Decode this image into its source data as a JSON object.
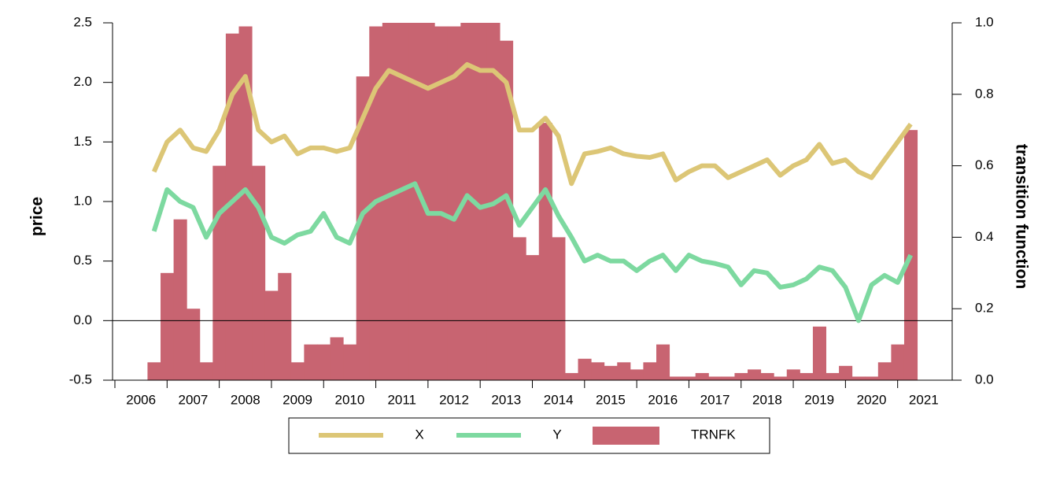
{
  "chart_data": {
    "type": "line",
    "y_label": "price",
    "y2_label": "transition function",
    "xlim": [
      2006,
      2022
    ],
    "xticks": [
      2006,
      2007,
      2008,
      2009,
      2010,
      2011,
      2012,
      2013,
      2014,
      2015,
      2016,
      2017,
      2018,
      2019,
      2020,
      2021
    ],
    "ylim": [
      -0.5,
      2.5
    ],
    "yticks": [
      -0.5,
      {
        "value": 0,
        "label": "0.0"
      },
      0.5,
      {
        "value": 1,
        "label": "1.0"
      },
      1.5,
      {
        "value": 2,
        "label": "2.0"
      },
      2.5
    ],
    "y2lim": [
      0,
      1
    ],
    "y2ticks": [
      {
        "value": 0,
        "label": "0.0"
      },
      0.2,
      0.4,
      0.6,
      0.8,
      {
        "value": 1,
        "label": "1.0"
      }
    ],
    "zero_line": true,
    "x": [
      2006.75,
      2007.0,
      2007.25,
      2007.5,
      2007.75,
      2008.0,
      2008.25,
      2008.5,
      2008.75,
      2009.0,
      2009.25,
      2009.5,
      2009.75,
      2010.0,
      2010.25,
      2010.5,
      2010.75,
      2011.0,
      2011.25,
      2011.5,
      2011.75,
      2012.0,
      2012.25,
      2012.5,
      2012.75,
      2013.0,
      2013.25,
      2013.5,
      2013.75,
      2014.0,
      2014.25,
      2014.5,
      2014.75,
      2015.0,
      2015.25,
      2015.5,
      2015.75,
      2016.0,
      2016.25,
      2016.5,
      2016.75,
      2017.0,
      2017.25,
      2017.5,
      2017.75,
      2018.0,
      2018.25,
      2018.5,
      2018.75,
      2019.0,
      2019.25,
      2019.5,
      2019.75,
      2020.0,
      2020.25,
      2020.5,
      2020.75,
      2021.0,
      2021.25
    ],
    "series": [
      {
        "name": "X",
        "type": "line",
        "color": "#dcc676",
        "values": [
          1.25,
          1.5,
          1.6,
          1.45,
          1.42,
          1.6,
          1.9,
          2.05,
          1.6,
          1.5,
          1.55,
          1.4,
          1.45,
          1.45,
          1.42,
          1.45,
          1.7,
          1.95,
          2.1,
          2.05,
          2.0,
          1.95,
          2.0,
          2.05,
          2.15,
          2.1,
          2.1,
          2.0,
          1.6,
          1.6,
          1.7,
          1.55,
          1.15,
          1.4,
          1.42,
          1.45,
          1.4,
          1.38,
          1.37,
          1.4,
          1.18,
          1.25,
          1.3,
          1.3,
          1.2,
          1.25,
          1.3,
          1.35,
          1.22,
          1.3,
          1.35,
          1.48,
          1.32,
          1.35,
          1.25,
          1.2,
          1.35,
          1.5,
          1.65
        ]
      },
      {
        "name": "Y",
        "type": "line",
        "color": "#7dd9a0",
        "values": [
          0.75,
          1.1,
          1.0,
          0.95,
          0.7,
          0.9,
          1.0,
          1.1,
          0.95,
          0.7,
          0.65,
          0.72,
          0.75,
          0.9,
          0.7,
          0.65,
          0.9,
          1.0,
          1.05,
          1.1,
          1.15,
          0.9,
          0.9,
          0.85,
          1.05,
          0.95,
          0.98,
          1.05,
          0.8,
          0.95,
          1.1,
          0.88,
          0.7,
          0.5,
          0.55,
          0.5,
          0.5,
          0.42,
          0.5,
          0.55,
          0.42,
          0.55,
          0.5,
          0.48,
          0.45,
          0.3,
          0.42,
          0.4,
          0.28,
          0.3,
          0.35,
          0.45,
          0.42,
          0.28,
          0.0,
          0.3,
          0.38,
          0.32,
          0.55
        ]
      },
      {
        "name": "TRNFK",
        "type": "bar",
        "axis": "y2",
        "color": "#c86471",
        "values": [
          0.05,
          0.3,
          0.45,
          0.2,
          0.05,
          0.6,
          0.97,
          0.99,
          0.6,
          0.25,
          0.3,
          0.05,
          0.1,
          0.1,
          0.12,
          0.1,
          0.85,
          0.99,
          1.0,
          1.0,
          1.0,
          1.0,
          0.99,
          0.99,
          1.0,
          1.0,
          1.0,
          0.95,
          0.4,
          0.35,
          0.72,
          0.4,
          0.02,
          0.06,
          0.05,
          0.04,
          0.05,
          0.03,
          0.05,
          0.1,
          0.01,
          0.01,
          0.02,
          0.01,
          0.01,
          0.02,
          0.03,
          0.02,
          0.01,
          0.03,
          0.02,
          0.15,
          0.02,
          0.04,
          0.01,
          0.01,
          0.05,
          0.1,
          0.7
        ]
      }
    ]
  }
}
